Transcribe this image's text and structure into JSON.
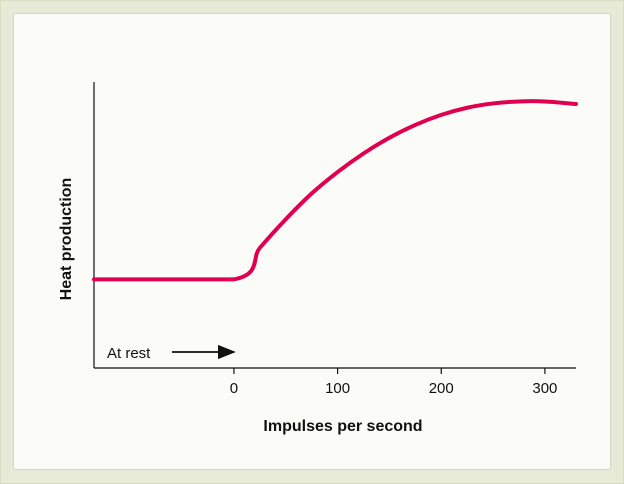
{
  "chart_data": {
    "type": "line",
    "title": "",
    "xlabel": "Impulses per second",
    "ylabel": "Heat production",
    "x_ticks": [
      "0",
      "100",
      "200",
      "300"
    ],
    "xlim": [
      -135,
      330
    ],
    "ylim": [
      0,
      100
    ],
    "grid": false,
    "series": [
      {
        "color": "#e0004f",
        "x": [
          -135,
          0,
          25,
          50,
          75,
          100,
          125,
          150,
          175,
          200,
          225,
          250,
          275,
          300,
          330
        ],
        "y": [
          31,
          31,
          42,
          52,
          61,
          68.5,
          75,
          80.5,
          85,
          88.5,
          91,
          92.5,
          93.2,
          93.2,
          92.3
        ]
      }
    ],
    "annotations": [
      {
        "text": "At rest",
        "arrow": true
      }
    ]
  }
}
